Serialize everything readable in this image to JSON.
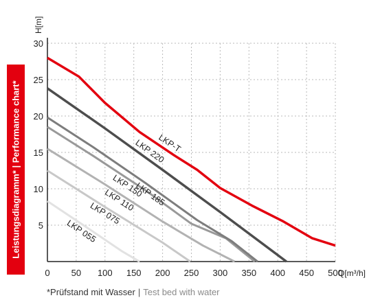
{
  "side_label": "Leistungsdiagramm* | Performance chart*",
  "footnote": {
    "de": "*Prüfstand mit Wasser",
    "separator": "|",
    "en": "Test bed with water"
  },
  "colors": {
    "accent": "#e3000f",
    "grid": "#b9b9b9",
    "axis": "#222222"
  },
  "chart_data": {
    "type": "line",
    "title": "",
    "xlabel": "Q[m³/h]",
    "ylabel": "H[m]",
    "xlim": [
      0,
      500
    ],
    "ylim": [
      0,
      30
    ],
    "xticks": [
      0,
      50,
      100,
      150,
      200,
      250,
      300,
      350,
      400,
      450,
      500
    ],
    "yticks": [
      5,
      10,
      15,
      20,
      25,
      30
    ],
    "grid": true,
    "series": [
      {
        "name": "LKP-T",
        "color": "#e3000f",
        "width": 3.5,
        "x": [
          0,
          55,
          100,
          160,
          220,
          260,
          300,
          355,
          410,
          460,
          500
        ],
        "y": [
          28,
          25.4,
          21.8,
          17.8,
          14.6,
          12.6,
          10.1,
          7.7,
          5.5,
          3.2,
          2.2
        ]
      },
      {
        "name": "LKP 220",
        "color": "#4d4d4d",
        "width": 3.5,
        "x": [
          0,
          100,
          200,
          300,
          415
        ],
        "y": [
          23.8,
          18.3,
          12.6,
          6.8,
          0
        ]
      },
      {
        "name": "LKP 185",
        "color": "#7d7d7d",
        "width": 3,
        "x": [
          0,
          80,
          170,
          260,
          320,
          365
        ],
        "y": [
          19.8,
          15.7,
          10.8,
          5.7,
          2.8,
          0
        ]
      },
      {
        "name": "LKP 150",
        "color": "#999999",
        "width": 3,
        "x": [
          0,
          80,
          170,
          250,
          310,
          360
        ],
        "y": [
          18.5,
          14.5,
          9.8,
          5.2,
          3.2,
          0
        ]
      },
      {
        "name": "LKP 110",
        "color": "#b2b2b2",
        "width": 3,
        "x": [
          0,
          100,
          200,
          270,
          325
        ],
        "y": [
          15.5,
          10.6,
          5.5,
          2.2,
          0
        ]
      },
      {
        "name": "LKP 075",
        "color": "#c8c8c8",
        "width": 3,
        "x": [
          0,
          100,
          200,
          248
        ],
        "y": [
          12.5,
          7.5,
          2.6,
          0
        ]
      },
      {
        "name": "LKP 055",
        "color": "#e2e2e2",
        "width": 3,
        "x": [
          0,
          70,
          130,
          160
        ],
        "y": [
          8.3,
          4.6,
          1.4,
          0
        ]
      }
    ]
  }
}
